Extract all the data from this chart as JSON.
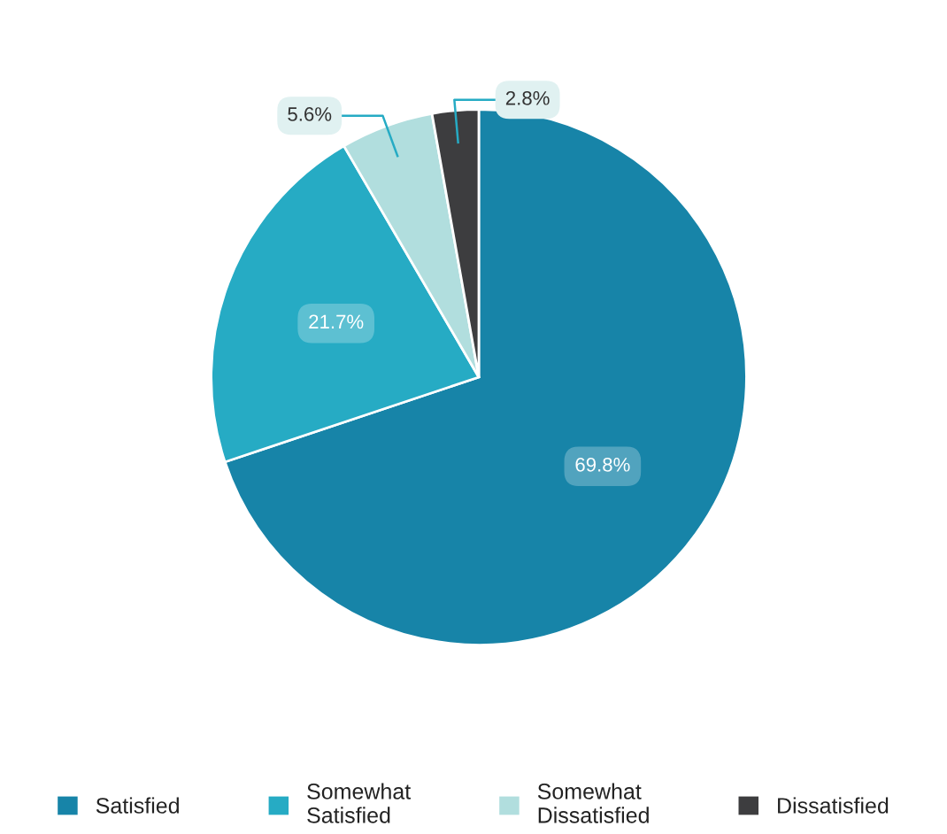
{
  "chart_data": {
    "type": "pie",
    "categories": [
      "Satisfied",
      "Somewhat Satisfied",
      "Somewhat Dissatisfied",
      "Dissatisfied"
    ],
    "values": [
      69.8,
      21.7,
      5.6,
      2.8
    ],
    "colors": [
      "#1784a8",
      "#26abc4",
      "#b1dede",
      "#3d3d3f"
    ],
    "value_labels": [
      "69.8%",
      "21.7%",
      "5.6%",
      "2.8%"
    ],
    "legend": "bottom"
  }
}
